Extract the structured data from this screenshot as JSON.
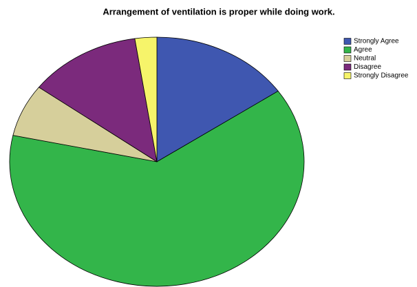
{
  "chart_data": {
    "type": "pie",
    "title": "Arrangement of ventilation is proper while doing work.",
    "categories": [
      "Strongly Agree",
      "Agree",
      "Neutral",
      "Disagree",
      "Strongly Disagree"
    ],
    "values": [
      15.4,
      63.0,
      6.8,
      12.4,
      2.4
    ],
    "colors": [
      "#3f57b0",
      "#33b54a",
      "#d6cf9b",
      "#7b2a7c",
      "#f6f46a"
    ],
    "legend": "top-right"
  }
}
